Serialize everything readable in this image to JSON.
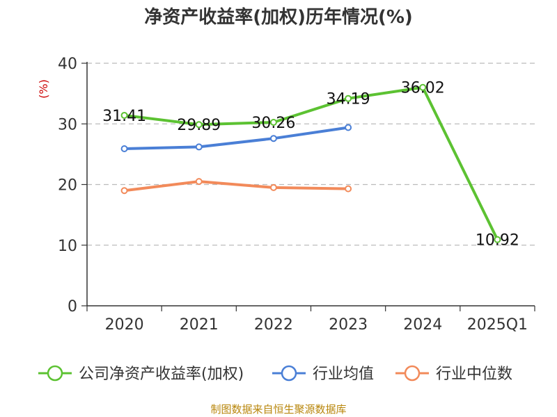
{
  "title": "净资产收益率(加权)历年情况(%)",
  "source": "制图数据来自恒生聚源数据库",
  "chart_data": {
    "type": "line",
    "title": "净资产收益率(加权)历年情况(%)",
    "ylabel": "(%)",
    "xlabel": "",
    "ylim": [
      0,
      40
    ],
    "yticks": [
      0,
      10,
      20,
      30,
      40
    ],
    "grid": true,
    "legend_position": "bottom",
    "categories": [
      "2020",
      "2021",
      "2022",
      "2023",
      "2024",
      "2025Q1"
    ],
    "series": [
      {
        "name": "公司净资产收益率(加权)",
        "color": "#5cc232",
        "values": [
          31.41,
          29.89,
          30.26,
          34.19,
          36.02,
          10.92
        ],
        "labels": [
          "31.41",
          "29.89",
          "30.26",
          "34.19",
          "36.02",
          "10.92"
        ]
      },
      {
        "name": "行业均值",
        "color": "#4a7fd6",
        "values": [
          25.9,
          26.2,
          27.6,
          29.4,
          null,
          null
        ]
      },
      {
        "name": "行业中位数",
        "color": "#f28a5a",
        "values": [
          19.0,
          20.5,
          19.5,
          19.3,
          null,
          null
        ]
      }
    ]
  }
}
